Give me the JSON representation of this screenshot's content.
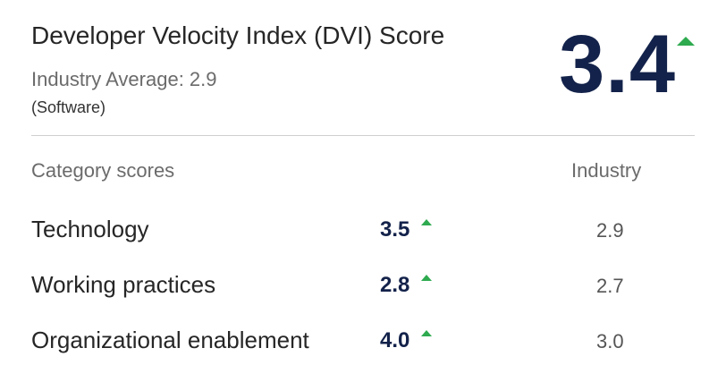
{
  "header": {
    "title": "Developer Velocity Index (DVI) Score",
    "industry_average": "Industry Average: 2.9",
    "sector": "(Software)",
    "score": "3.4",
    "score_trend": "up"
  },
  "table": {
    "category_header": "Category scores",
    "industry_header": "Industry",
    "rows": [
      {
        "label": "Technology",
        "score": "3.5",
        "trend": "up",
        "industry": "2.9"
      },
      {
        "label": "Working practices",
        "score": "2.8",
        "trend": "up",
        "industry": "2.7"
      },
      {
        "label": "Organizational enablement",
        "score": "4.0",
        "trend": "up",
        "industry": "3.0"
      }
    ]
  },
  "colors": {
    "score_text": "#13224a",
    "trend_up": "#2eaa4f",
    "divider": "#cfcfcf"
  },
  "icons": {
    "trend": "triangle-up-icon"
  }
}
